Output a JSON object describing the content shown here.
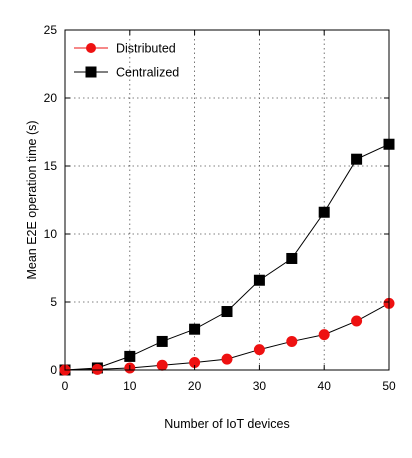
{
  "chart_data": {
    "type": "line",
    "xlabel": "Number of IoT devices",
    "ylabel": "Mean E2E operation time (s)",
    "xlim": [
      0,
      50
    ],
    "ylim": [
      0,
      25
    ],
    "xticks": [
      "0",
      "10",
      "20",
      "30",
      "40",
      "50"
    ],
    "yticks": [
      "0",
      "5",
      "10",
      "15",
      "20",
      "25"
    ],
    "grid": true,
    "legend_position": "top-left",
    "x": [
      0,
      5,
      10,
      15,
      20,
      25,
      30,
      35,
      40,
      45,
      50
    ],
    "series": [
      {
        "name": "Distributed",
        "marker": "circle",
        "color": "#ee1111",
        "values": [
          0,
          0.05,
          0.15,
          0.35,
          0.55,
          0.8,
          1.5,
          2.1,
          2.6,
          3.6,
          4.9
        ]
      },
      {
        "name": "Centralized",
        "marker": "square",
        "color": "#000000",
        "values": [
          0,
          0.15,
          1.0,
          2.1,
          3.0,
          4.3,
          6.6,
          8.2,
          11.6,
          15.5,
          16.6
        ]
      }
    ]
  }
}
